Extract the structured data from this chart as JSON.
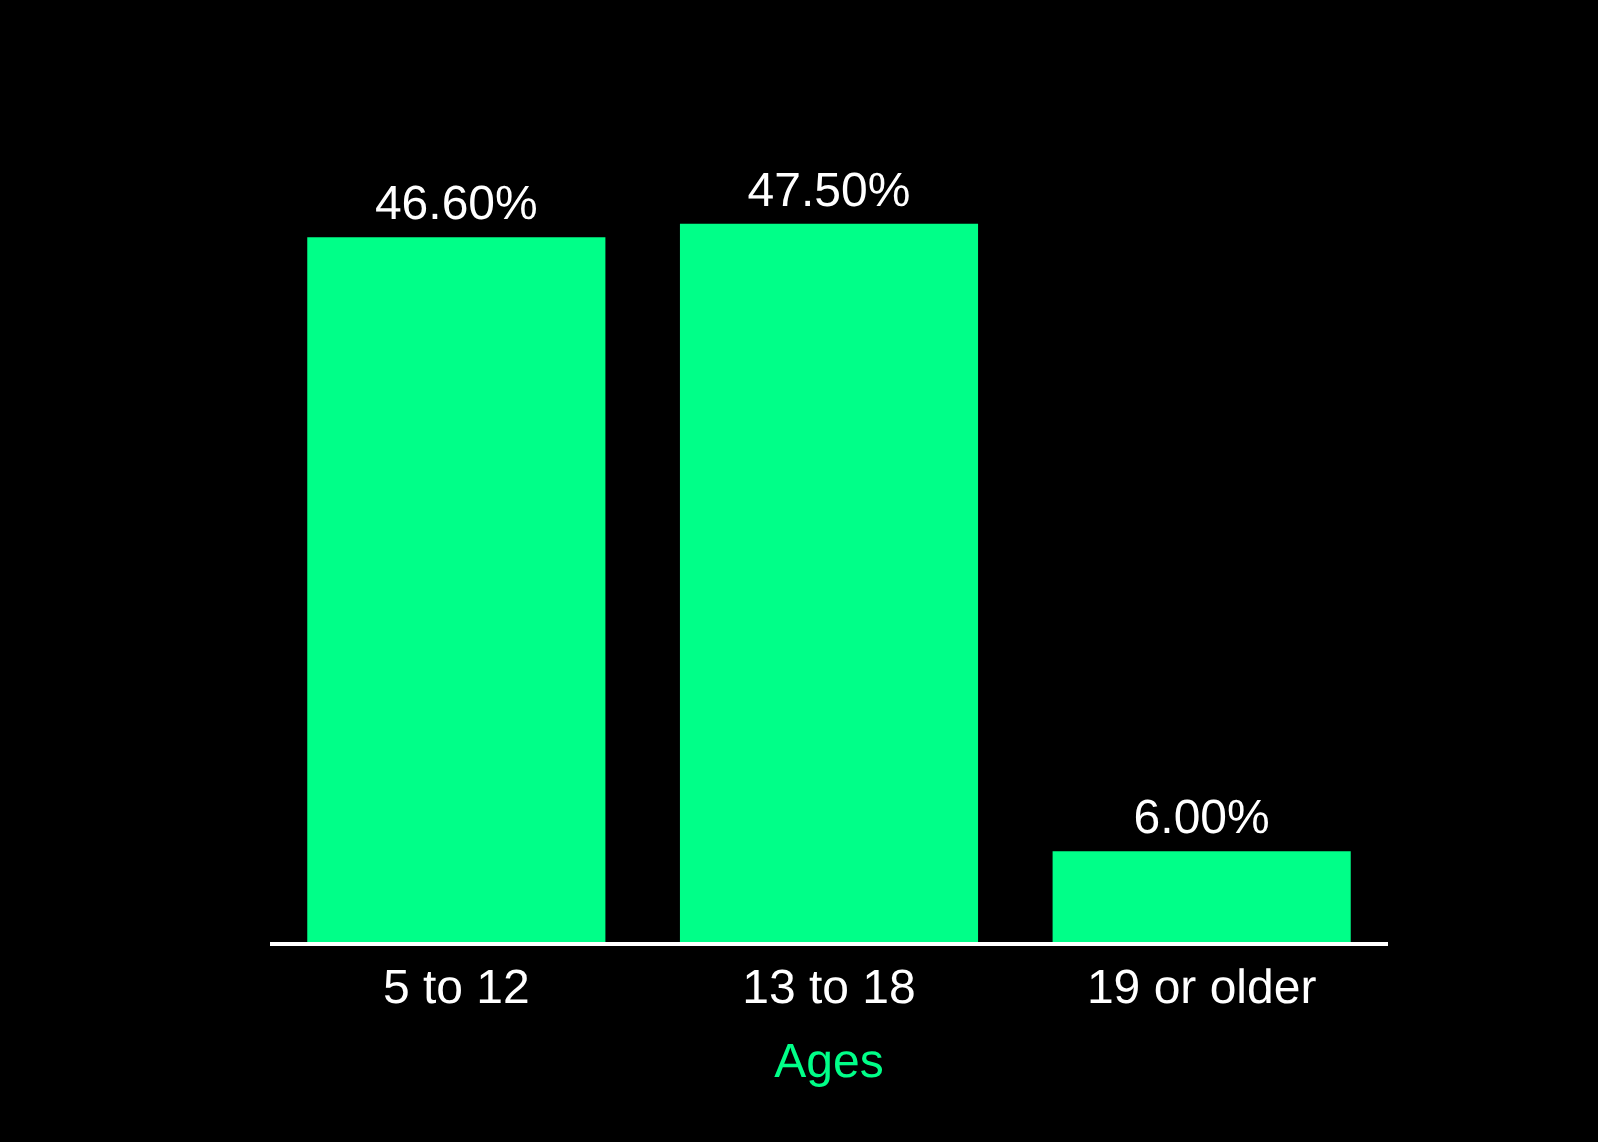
{
  "chart_data": {
    "type": "bar",
    "xlabel": "Ages",
    "categories": [
      "5 to 12",
      "13 to 18",
      "19 or older"
    ],
    "values": [
      46.6,
      47.5,
      6.0
    ],
    "value_labels": [
      "46.60%",
      "47.50%",
      "6.00%"
    ],
    "color": "#00ff88",
    "grid": false,
    "legend": false
  }
}
